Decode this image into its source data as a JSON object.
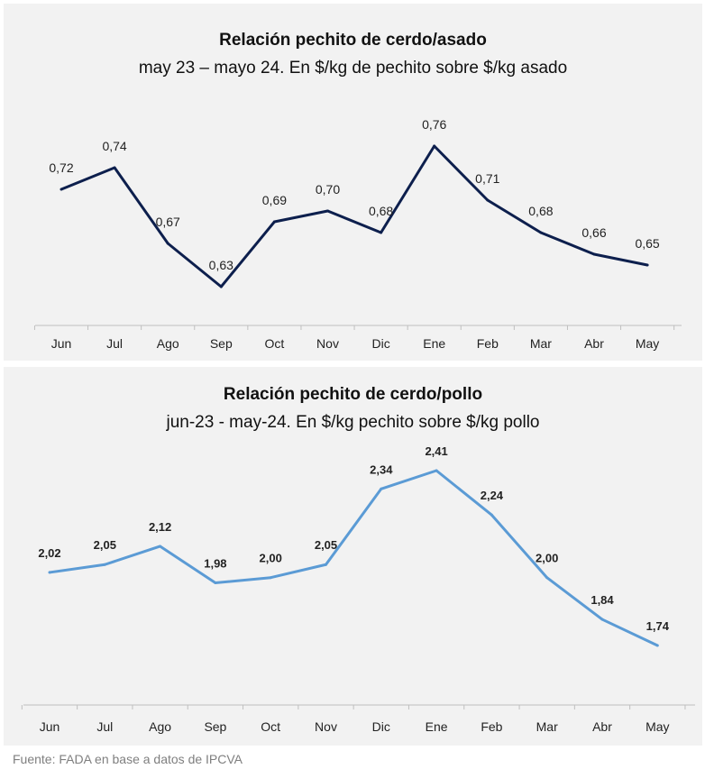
{
  "source": "Fuente: FADA en base a datos de IPCVA",
  "chart_data": [
    {
      "type": "line",
      "title": "Relación pechito de cerdo/asado",
      "subtitle": "may 23 – mayo 24. En $/kg de pechito sobre $/kg asado",
      "categories": [
        "Jun",
        "Jul",
        "Ago",
        "Sep",
        "Oct",
        "Nov",
        "Dic",
        "Ene",
        "Feb",
        "Mar",
        "Abr",
        "May"
      ],
      "series": [
        {
          "values": [
            0.72,
            0.74,
            0.67,
            0.63,
            0.69,
            0.7,
            0.68,
            0.76,
            0.71,
            0.68,
            0.66,
            0.65
          ],
          "labels": [
            "0,72",
            "0,74",
            "0,67",
            "0,63",
            "0,69",
            "0,70",
            "0,68",
            "0,76",
            "0,71",
            "0,68",
            "0,66",
            "0,65"
          ],
          "color": "#0d1f4d"
        }
      ],
      "grid": false,
      "legend": "none"
    },
    {
      "type": "line",
      "title": "Relación pechito de cerdo/pollo",
      "subtitle": "jun-23 - may-24. En $/kg pechito sobre $/kg pollo",
      "categories": [
        "Jun",
        "Jul",
        "Ago",
        "Sep",
        "Oct",
        "Nov",
        "Dic",
        "Ene",
        "Feb",
        "Mar",
        "Abr",
        "May"
      ],
      "series": [
        {
          "values": [
            2.02,
            2.05,
            2.12,
            1.98,
            2.0,
            2.05,
            2.34,
            2.41,
            2.24,
            2.0,
            1.84,
            1.74
          ],
          "labels": [
            "2,02",
            "2,05",
            "2,12",
            "1,98",
            "2,00",
            "2,05",
            "2,34",
            "2,41",
            "2,24",
            "2,00",
            "1,84",
            "1,74"
          ],
          "color": "#5b9bd5"
        }
      ],
      "grid": false,
      "legend": "none"
    }
  ]
}
